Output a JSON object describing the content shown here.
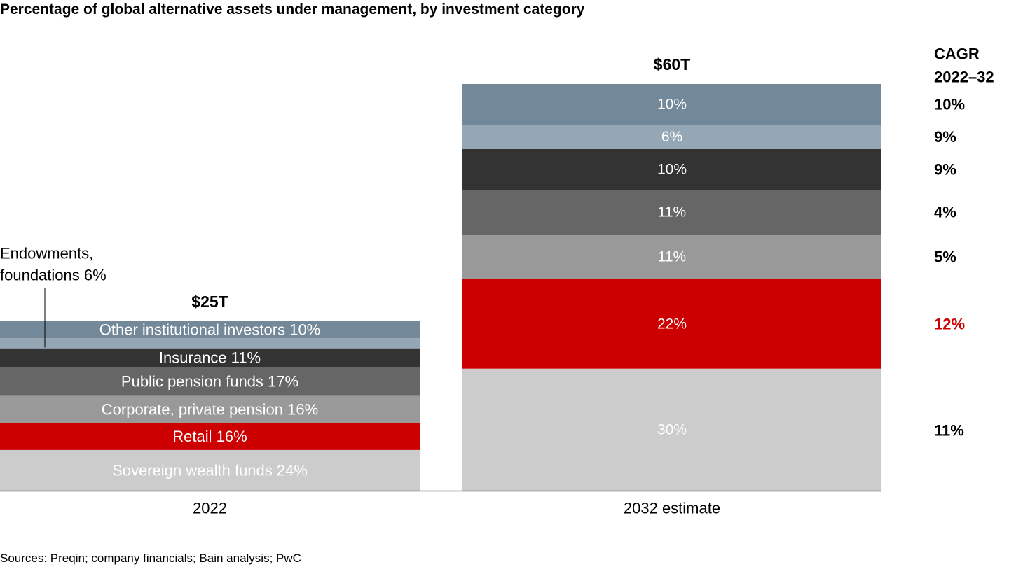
{
  "title": "Percentage of global alternative assets under management, by investment category",
  "source": "Sources: Preqin; company financials; Bain analysis; PwC",
  "colors": {
    "sovereign": "#cccccc",
    "retail": "#cc0000",
    "corporate": "#999999",
    "public": "#666666",
    "insurance": "#333333",
    "endowments": "#95a6b4",
    "other": "#738899",
    "highlight_text": "#cc0000",
    "dark_text": "#000000",
    "light_text": "#ffffff"
  },
  "chart_data": {
    "type": "bar",
    "stacked": true,
    "normalized": true,
    "categories": [
      "2022",
      "2032 estimate"
    ],
    "totals": [
      "$25T",
      "$60T"
    ],
    "total_values": [
      25,
      60
    ],
    "total_unit": "trillion USD",
    "series": [
      {
        "key": "sovereign",
        "values": [
          24,
          30
        ],
        "labels": [
          "Sovereign wealth funds 24%",
          "30%"
        ],
        "cagr": "11%",
        "cagr_highlight": false
      },
      {
        "key": "retail",
        "values": [
          16,
          22
        ],
        "labels": [
          "Retail 16%",
          "22%"
        ],
        "cagr": "12%",
        "cagr_highlight": true
      },
      {
        "key": "corporate",
        "values": [
          16,
          11
        ],
        "labels": [
          "Corporate, private pension 16%",
          "11%"
        ],
        "cagr": "5%",
        "cagr_highlight": false
      },
      {
        "key": "public",
        "values": [
          17,
          11
        ],
        "labels": [
          "Public pension funds 17%",
          "11%"
        ],
        "cagr": "4%",
        "cagr_highlight": false
      },
      {
        "key": "insurance",
        "values": [
          11,
          10
        ],
        "labels": [
          "Insurance 11%",
          "10%"
        ],
        "cagr": "9%",
        "cagr_highlight": false
      },
      {
        "key": "endowments",
        "values": [
          6,
          6
        ],
        "labels": [
          "",
          "6%"
        ],
        "cagr": "9%",
        "cagr_highlight": false
      },
      {
        "key": "other",
        "values": [
          10,
          10
        ],
        "labels": [
          "Other institutional investors 10%",
          "10%"
        ],
        "cagr": "10%",
        "cagr_highlight": false
      }
    ],
    "callout": {
      "lines": [
        "Endowments,",
        "foundations 6%"
      ],
      "series": "endowments"
    },
    "cagr_header": [
      "CAGR",
      "2022–32"
    ]
  }
}
